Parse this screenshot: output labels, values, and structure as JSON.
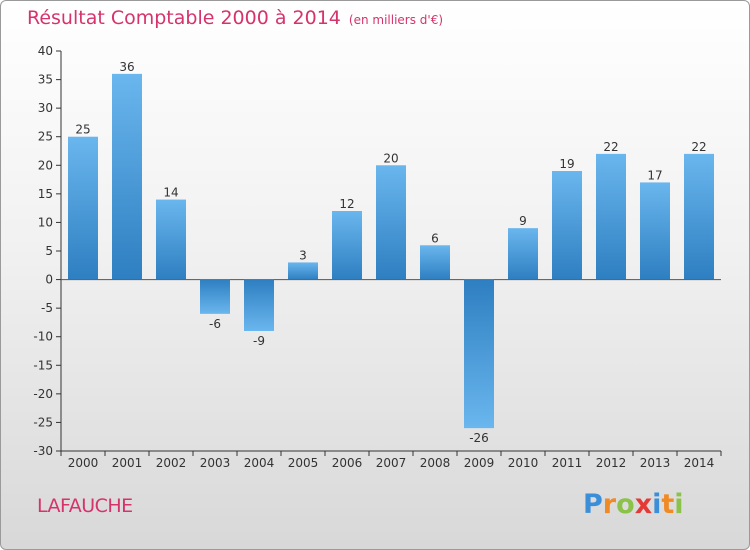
{
  "chart_data": {
    "type": "bar",
    "title": "Résultat Comptable 2000 à 2014",
    "subtitle": "(en milliers d'€)",
    "categories": [
      "2000",
      "2001",
      "2002",
      "2003",
      "2004",
      "2005",
      "2006",
      "2007",
      "2008",
      "2009",
      "2010",
      "2011",
      "2012",
      "2013",
      "2014"
    ],
    "values": [
      25,
      36,
      14,
      -6,
      -9,
      3,
      12,
      20,
      6,
      -26,
      9,
      19,
      22,
      17,
      22
    ],
    "ylim": [
      -30,
      40
    ],
    "yticks": [
      40,
      35,
      30,
      25,
      20,
      15,
      10,
      5,
      0,
      -5,
      -10,
      -15,
      -20,
      -25,
      -30
    ],
    "xlabel": "",
    "ylabel": "",
    "grid": false,
    "bar_color_light": "#6ab6ee",
    "bar_color_dark": "#2e7fc1"
  },
  "commune": "LAFAUCHE",
  "brand": {
    "letters": [
      "P",
      "r",
      "o",
      "x",
      "i",
      "t",
      "i"
    ],
    "text": "Proxiti"
  }
}
